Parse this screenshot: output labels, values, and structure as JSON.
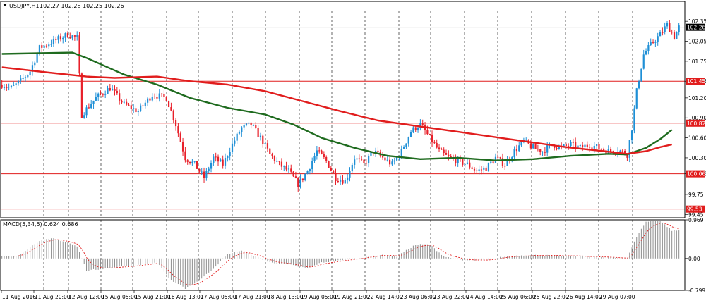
{
  "colors": {
    "background": "#ffffff",
    "grid": "#000000",
    "bull": "#1e8fd6",
    "bear": "#e8202a",
    "ma_fast": "#1f6b1f",
    "ma_slow": "#e11d1d",
    "level": "#e11d1d",
    "macd_hist": "#8c8c8c",
    "macd_signal": "#e11d1d"
  },
  "chart_data": [
    {
      "type": "candlestick",
      "title": "USDJPY,H1",
      "ohlc_header": "102.27 102.28 102.25 102.26",
      "last_price": "102.26",
      "ylim": [
        99.4,
        102.5
      ],
      "y_ticks": [
        "102.35",
        "102.05",
        "101.75",
        "101.45",
        "101.20",
        "100.90",
        "100.60",
        "100.30",
        "100.06",
        "99.75",
        "99.45"
      ],
      "x_ticks": [
        "11 Aug 2016",
        "11 Aug 20:00",
        "12 Aug 12:00",
        "15 Aug 05:00",
        "15 Aug 21:00",
        "16 Aug 13:00",
        "17 Aug 05:00",
        "17 Aug 21:00",
        "18 Aug 13:00",
        "19 Aug 05:00",
        "19 Aug 21:00",
        "22 Aug 14:00",
        "23 Aug 06:00",
        "23 Aug 22:00",
        "24 Aug 14:00",
        "25 Aug 06:00",
        "25 Aug 22:00",
        "26 Aug 14:00",
        "29 Aug 07:00"
      ],
      "horizontal_levels": [
        {
          "value": 101.45,
          "label": "101.45"
        },
        {
          "value": 100.82,
          "label": "100.82"
        },
        {
          "value": 100.06,
          "label": "100.06"
        },
        {
          "value": 99.53,
          "label": "99.53"
        }
      ],
      "current_price_line": 102.26,
      "anchors": [
        [
          0,
          101.4
        ],
        [
          4,
          101.35
        ],
        [
          8,
          101.45
        ],
        [
          12,
          101.6
        ],
        [
          16,
          101.95
        ],
        [
          22,
          102.05
        ],
        [
          28,
          102.15
        ],
        [
          32,
          102.1
        ],
        [
          34,
          100.95
        ],
        [
          40,
          101.2
        ],
        [
          46,
          101.35
        ],
        [
          52,
          101.1
        ],
        [
          58,
          101.0
        ],
        [
          64,
          101.25
        ],
        [
          70,
          101.2
        ],
        [
          74,
          100.8
        ],
        [
          78,
          100.3
        ],
        [
          82,
          100.2
        ],
        [
          86,
          100.0
        ],
        [
          90,
          100.3
        ],
        [
          94,
          100.2
        ],
        [
          98,
          100.5
        ],
        [
          102,
          100.75
        ],
        [
          106,
          100.8
        ],
        [
          110,
          100.6
        ],
        [
          114,
          100.35
        ],
        [
          118,
          100.2
        ],
        [
          122,
          100.1
        ],
        [
          126,
          99.9
        ],
        [
          130,
          100.1
        ],
        [
          134,
          100.4
        ],
        [
          138,
          100.25
        ],
        [
          142,
          100.0
        ],
        [
          146,
          99.95
        ],
        [
          150,
          100.3
        ],
        [
          154,
          100.2
        ],
        [
          158,
          100.4
        ],
        [
          162,
          100.3
        ],
        [
          166,
          100.2
        ],
        [
          170,
          100.4
        ],
        [
          174,
          100.7
        ],
        [
          178,
          100.8
        ],
        [
          182,
          100.6
        ],
        [
          186,
          100.4
        ],
        [
          190,
          100.3
        ],
        [
          194,
          100.25
        ],
        [
          198,
          100.2
        ],
        [
          202,
          100.1
        ],
        [
          206,
          100.15
        ],
        [
          210,
          100.3
        ],
        [
          214,
          100.2
        ],
        [
          218,
          100.4
        ],
        [
          222,
          100.55
        ],
        [
          226,
          100.45
        ],
        [
          230,
          100.4
        ],
        [
          234,
          100.5
        ],
        [
          238,
          100.45
        ],
        [
          242,
          100.5
        ],
        [
          246,
          100.45
        ],
        [
          250,
          100.5
        ],
        [
          254,
          100.45
        ],
        [
          258,
          100.4
        ],
        [
          262,
          100.42
        ],
        [
          266,
          100.35
        ],
        [
          268,
          100.75
        ],
        [
          270,
          101.3
        ],
        [
          273,
          101.85
        ],
        [
          276,
          102.0
        ],
        [
          280,
          102.15
        ],
        [
          283,
          102.3
        ],
        [
          286,
          102.12
        ],
        [
          288,
          102.26
        ]
      ],
      "moving_averages": [
        {
          "points": [
            [
              0,
              101.86
            ],
            [
              30,
              101.88
            ],
            [
              36,
              101.8
            ],
            [
              52,
              101.55
            ],
            [
              66,
              101.4
            ],
            [
              80,
              101.2
            ],
            [
              96,
              101.05
            ],
            [
              112,
              100.95
            ],
            [
              124,
              100.8
            ],
            [
              136,
              100.6
            ],
            [
              150,
              100.45
            ],
            [
              164,
              100.33
            ],
            [
              178,
              100.28
            ],
            [
              194,
              100.3
            ],
            [
              210,
              100.26
            ],
            [
              226,
              100.28
            ],
            [
              242,
              100.33
            ],
            [
              258,
              100.36
            ],
            [
              266,
              100.35
            ],
            [
              274,
              100.45
            ],
            [
              280,
              100.58
            ],
            [
              285,
              100.72
            ]
          ]
        },
        {
          "points": [
            [
              0,
              101.66
            ],
            [
              20,
              101.58
            ],
            [
              36,
              101.52
            ],
            [
              48,
              101.5
            ],
            [
              66,
              101.52
            ],
            [
              80,
              101.45
            ],
            [
              96,
              101.4
            ],
            [
              112,
              101.3
            ],
            [
              128,
              101.15
            ],
            [
              144,
              101.0
            ],
            [
              160,
              100.86
            ],
            [
              176,
              100.78
            ],
            [
              192,
              100.7
            ],
            [
              208,
              100.62
            ],
            [
              224,
              100.54
            ],
            [
              240,
              100.46
            ],
            [
              256,
              100.4
            ],
            [
              266,
              100.36
            ],
            [
              274,
              100.4
            ],
            [
              280,
              100.46
            ],
            [
              285,
              100.5
            ]
          ]
        }
      ]
    },
    {
      "type": "bar",
      "title": "MACD(5,34,5) 0.624 0.686",
      "ylim": [
        -0.799,
        0.969
      ],
      "y_ticks": [
        "0.969",
        "0.00",
        "-0.799"
      ],
      "anchors": [
        [
          0,
          0.05
        ],
        [
          6,
          0.05
        ],
        [
          10,
          0.2
        ],
        [
          16,
          0.45
        ],
        [
          22,
          0.5
        ],
        [
          28,
          0.4
        ],
        [
          32,
          0.3
        ],
        [
          36,
          -0.3
        ],
        [
          44,
          -0.25
        ],
        [
          52,
          -0.2
        ],
        [
          60,
          -0.15
        ],
        [
          66,
          -0.1
        ],
        [
          72,
          -0.55
        ],
        [
          78,
          -0.75
        ],
        [
          84,
          -0.55
        ],
        [
          90,
          -0.25
        ],
        [
          96,
          0.1
        ],
        [
          102,
          0.2
        ],
        [
          108,
          0.05
        ],
        [
          114,
          -0.1
        ],
        [
          122,
          -0.15
        ],
        [
          130,
          -0.25
        ],
        [
          136,
          -0.1
        ],
        [
          144,
          -0.05
        ],
        [
          150,
          0.0
        ],
        [
          156,
          0.05
        ],
        [
          162,
          0.1
        ],
        [
          168,
          0.05
        ],
        [
          176,
          0.35
        ],
        [
          182,
          0.35
        ],
        [
          188,
          0.05
        ],
        [
          196,
          -0.05
        ],
        [
          206,
          -0.05
        ],
        [
          214,
          0.05
        ],
        [
          222,
          0.08
        ],
        [
          230,
          0.08
        ],
        [
          238,
          0.06
        ],
        [
          246,
          0.06
        ],
        [
          254,
          0.03
        ],
        [
          262,
          0.02
        ],
        [
          266,
          0.0
        ],
        [
          270,
          0.55
        ],
        [
          274,
          0.92
        ],
        [
          280,
          0.95
        ],
        [
          285,
          0.7
        ]
      ]
    }
  ]
}
